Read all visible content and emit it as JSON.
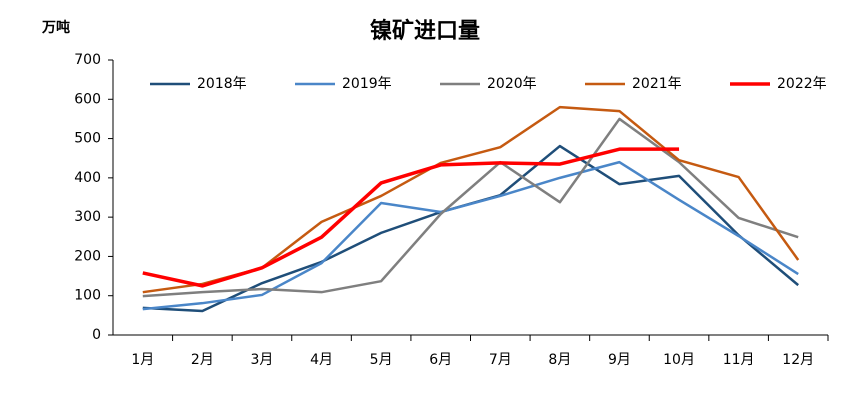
{
  "chart_data": {
    "type": "line",
    "title": "镍矿进口量",
    "y_label": "万吨",
    "categories": [
      "1月",
      "2月",
      "3月",
      "4月",
      "5月",
      "6月",
      "7月",
      "8月",
      "9月",
      "10月",
      "11月",
      "12月"
    ],
    "series": [
      {
        "name": "2018年",
        "color": "#1f4e79",
        "values": [
          69,
          61,
          132,
          186,
          260,
          313,
          356,
          481,
          384,
          405,
          254,
          127
        ]
      },
      {
        "name": "2019年",
        "color": "#4a86c8",
        "values": [
          66,
          81,
          102,
          183,
          336,
          313,
          354,
          400,
          440,
          344,
          252,
          155
        ]
      },
      {
        "name": "2020年",
        "color": "#7f7f7f",
        "values": [
          99,
          109,
          117,
          109,
          137,
          308,
          440,
          338,
          550,
          440,
          298,
          249
        ]
      },
      {
        "name": "2021年",
        "color": "#c55a11",
        "values": [
          109,
          130,
          171,
          288,
          354,
          438,
          478,
          580,
          570,
          445,
          402,
          191
        ]
      },
      {
        "name": "2022年",
        "color": "#ff0000",
        "values": [
          158,
          125,
          171,
          249,
          387,
          433,
          438,
          435,
          473,
          473,
          null,
          null
        ]
      }
    ],
    "ylim": [
      0,
      700
    ],
    "yticks": [
      0,
      100,
      200,
      300,
      400,
      500,
      600,
      700
    ],
    "grid": false
  }
}
